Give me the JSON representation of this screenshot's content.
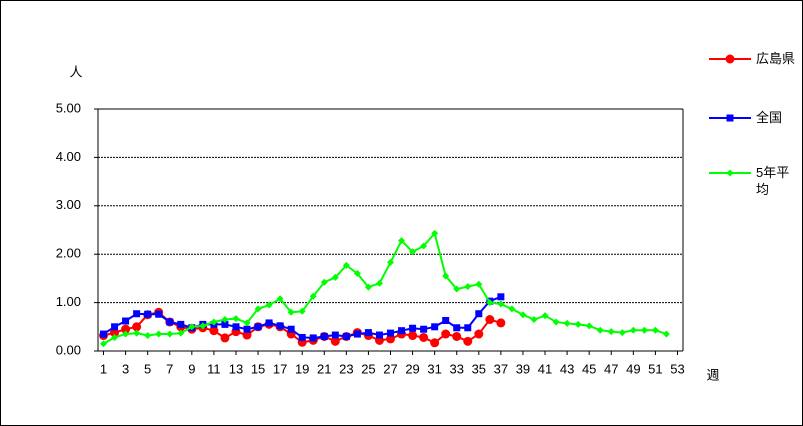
{
  "chart_data": {
    "type": "line",
    "y_unit_label": "人",
    "x_label": "週",
    "x": [
      1,
      2,
      3,
      4,
      5,
      6,
      7,
      8,
      9,
      10,
      11,
      12,
      13,
      14,
      15,
      16,
      17,
      18,
      19,
      20,
      21,
      22,
      23,
      24,
      25,
      26,
      27,
      28,
      29,
      30,
      31,
      32,
      33,
      34,
      35,
      36,
      37,
      38,
      39,
      40,
      41,
      42,
      43,
      44,
      45,
      46,
      47,
      48,
      49,
      50,
      51,
      52,
      53
    ],
    "xlim": [
      0.5,
      53.5
    ],
    "xticks": [
      1,
      3,
      5,
      7,
      9,
      11,
      13,
      15,
      17,
      19,
      21,
      23,
      25,
      27,
      29,
      31,
      33,
      35,
      37,
      39,
      41,
      43,
      45,
      47,
      49,
      51,
      53
    ],
    "ylim": [
      0,
      5
    ],
    "yticks": [
      {
        "value": 0,
        "label": "0.00"
      },
      {
        "value": 1,
        "label": "1.00"
      },
      {
        "value": 2,
        "label": "2.00"
      },
      {
        "value": 3,
        "label": "3.00"
      },
      {
        "value": 4,
        "label": "4.00"
      },
      {
        "value": 5,
        "label": "5.00"
      }
    ],
    "grid": true,
    "series": [
      {
        "name": "広島県",
        "color": "#ff0000",
        "marker": "circle",
        "values": [
          0.32,
          0.38,
          0.45,
          0.5,
          0.75,
          0.8,
          0.6,
          0.5,
          0.45,
          0.48,
          0.42,
          0.27,
          0.4,
          0.33,
          0.5,
          0.55,
          0.5,
          0.35,
          0.18,
          0.22,
          0.3,
          0.2,
          0.3,
          0.38,
          0.32,
          0.22,
          0.25,
          0.35,
          0.32,
          0.28,
          0.17,
          0.35,
          0.3,
          0.2,
          0.35,
          0.65,
          0.58,
          null,
          null,
          null,
          null,
          null,
          null,
          null,
          null,
          null,
          null,
          null,
          null,
          null,
          null,
          null,
          null
        ]
      },
      {
        "name": "全国",
        "color": "#0000ff",
        "marker": "square",
        "values": [
          0.35,
          0.5,
          0.62,
          0.77,
          0.76,
          0.76,
          0.6,
          0.55,
          0.48,
          0.55,
          0.55,
          0.55,
          0.5,
          0.45,
          0.5,
          0.58,
          0.52,
          0.45,
          0.28,
          0.27,
          0.3,
          0.33,
          0.3,
          0.35,
          0.38,
          0.33,
          0.37,
          0.42,
          0.47,
          0.45,
          0.5,
          0.63,
          0.48,
          0.48,
          0.77,
          1.03,
          1.12,
          null,
          null,
          null,
          null,
          null,
          null,
          null,
          null,
          null,
          null,
          null,
          null,
          null,
          null,
          null,
          null
        ]
      },
      {
        "name": "5年平均",
        "color": "#00ff00",
        "marker": "diamond",
        "values": [
          0.15,
          0.28,
          0.35,
          0.37,
          0.32,
          0.35,
          0.35,
          0.37,
          0.5,
          0.52,
          0.6,
          0.65,
          0.67,
          0.58,
          0.87,
          0.95,
          1.08,
          0.8,
          0.82,
          1.13,
          1.42,
          1.52,
          1.77,
          1.6,
          1.32,
          1.4,
          1.83,
          2.28,
          2.05,
          2.17,
          2.43,
          1.55,
          1.28,
          1.33,
          1.38,
          1.0,
          0.97,
          0.87,
          0.75,
          0.65,
          0.73,
          0.6,
          0.57,
          0.55,
          0.52,
          0.43,
          0.4,
          0.38,
          0.43,
          0.43,
          0.43,
          0.35,
          null
        ]
      }
    ]
  }
}
